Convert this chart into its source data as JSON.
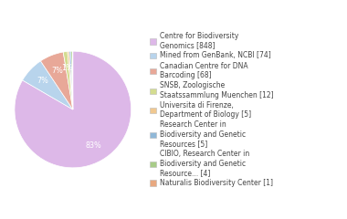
{
  "labels": [
    "Centre for Biodiversity\nGenomics [848]",
    "Mined from GenBank, NCBI [74]",
    "Canadian Centre for DNA\nBarcoding [68]",
    "SNSB, Zoologische\nStaatssammlung Muenchen [12]",
    "Universita di Firenze,\nDepartment of Biology [5]",
    "Research Center in\nBiodiversity and Genetic\nResources [5]",
    "CIBIO, Research Center in\nBiodiversity and Genetic\nResource... [4]",
    "Naturalis Biodiversity Center [1]"
  ],
  "values": [
    848,
    74,
    68,
    12,
    5,
    5,
    4,
    1
  ],
  "colors": [
    "#ddb8e8",
    "#b8d4ec",
    "#e8a898",
    "#d4dc90",
    "#f0c890",
    "#90b8d8",
    "#a8cc88",
    "#e8a880"
  ],
  "background_color": "#ffffff",
  "text_color": "#444444",
  "fontsize": 5.8,
  "legend_fontsize": 5.5
}
